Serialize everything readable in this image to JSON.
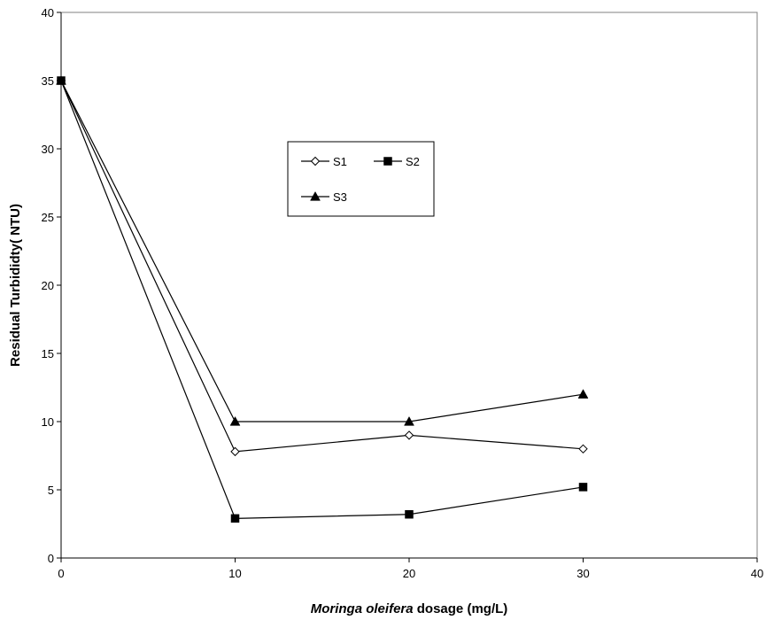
{
  "chart_data": {
    "type": "line",
    "title": "",
    "xlabel_italic": "Moringa oleifera",
    "xlabel_rest": " dosage (mg/L)",
    "ylabel": "Residual Turbididty( NTU)",
    "xlim": [
      0,
      40
    ],
    "ylim": [
      0,
      40
    ],
    "xticks": [
      "0",
      "10",
      "20",
      "30",
      "40"
    ],
    "yticks": [
      "0",
      "5",
      "10",
      "15",
      "20",
      "25",
      "30",
      "35",
      "40"
    ],
    "grid": false,
    "legend_position": "upper-center",
    "x": [
      0,
      10,
      20,
      30
    ],
    "series": [
      {
        "name": "S1",
        "marker": "diamond-open",
        "values": [
          35,
          7.8,
          9,
          8
        ]
      },
      {
        "name": "S2",
        "marker": "square-filled",
        "values": [
          35,
          2.9,
          3.2,
          5.2
        ]
      },
      {
        "name": "S3",
        "marker": "triangle-filled",
        "values": [
          35,
          10,
          10,
          12
        ]
      }
    ],
    "colors": {
      "line": "#000000",
      "marker_fill": "#000000",
      "marker_open_fill": "#ffffff"
    }
  }
}
